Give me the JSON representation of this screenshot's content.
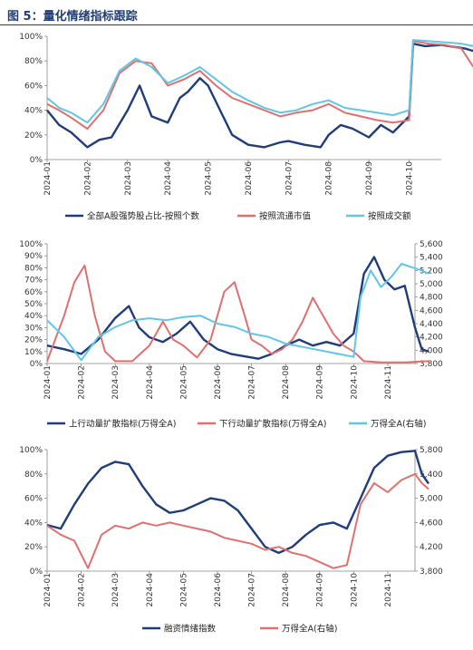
{
  "figure": {
    "title": "图 5：量化情绪指标跟踪"
  },
  "chart_data": [
    {
      "type": "line",
      "ylim": [
        0,
        100
      ],
      "y_ticks": [
        "0%",
        "20%",
        "40%",
        "60%",
        "80%",
        "100%"
      ],
      "x_ticks": [
        "2024-01",
        "2024-02",
        "2024-03",
        "2024-04",
        "2024-05",
        "2024-06",
        "2024-07",
        "2024-08",
        "2024-09",
        "2024-10"
      ],
      "legend_position": "bottom",
      "grid": false,
      "series": [
        {
          "name": "全部A股强势股占比-按照个数",
          "color": "#1f3d7a",
          "points": [
            [
              0,
              40
            ],
            [
              0.3,
              28
            ],
            [
              0.6,
              22
            ],
            [
              1,
              10
            ],
            [
              1.3,
              16
            ],
            [
              1.6,
              18
            ],
            [
              2,
              40
            ],
            [
              2.3,
              60
            ],
            [
              2.6,
              35
            ],
            [
              3,
              30
            ],
            [
              3.3,
              50
            ],
            [
              3.5,
              55
            ],
            [
              3.8,
              66
            ],
            [
              4,
              60
            ],
            [
              4.3,
              40
            ],
            [
              4.6,
              20
            ],
            [
              5,
              12
            ],
            [
              5.4,
              10
            ],
            [
              5.8,
              14
            ],
            [
              6,
              15
            ],
            [
              6.4,
              12
            ],
            [
              6.8,
              10
            ],
            [
              7,
              20
            ],
            [
              7.3,
              28
            ],
            [
              7.6,
              25
            ],
            [
              8,
              18
            ],
            [
              8.3,
              28
            ],
            [
              8.6,
              22
            ],
            [
              9,
              35
            ],
            [
              9.1,
              94
            ],
            [
              9.4,
              92
            ],
            [
              9.8,
              93
            ],
            [
              10,
              92
            ],
            [
              10.4,
              90
            ],
            [
              10.6,
              88
            ]
          ]
        },
        {
          "name": "按照流通市值",
          "color": "#e07070",
          "points": [
            [
              0,
              45
            ],
            [
              0.3,
              40
            ],
            [
              0.6,
              34
            ],
            [
              1,
              25
            ],
            [
              1.4,
              40
            ],
            [
              1.8,
              70
            ],
            [
              2.2,
              80
            ],
            [
              2.6,
              78
            ],
            [
              3,
              60
            ],
            [
              3.4,
              65
            ],
            [
              3.8,
              72
            ],
            [
              4.2,
              60
            ],
            [
              4.6,
              50
            ],
            [
              5,
              45
            ],
            [
              5.4,
              40
            ],
            [
              5.8,
              35
            ],
            [
              6.2,
              38
            ],
            [
              6.6,
              40
            ],
            [
              7,
              45
            ],
            [
              7.4,
              38
            ],
            [
              7.8,
              35
            ],
            [
              8.2,
              32
            ],
            [
              8.6,
              30
            ],
            [
              9,
              32
            ],
            [
              9.1,
              96
            ],
            [
              9.5,
              94
            ],
            [
              9.9,
              93
            ],
            [
              10.3,
              90
            ],
            [
              10.6,
              75
            ]
          ]
        },
        {
          "name": "按照成交额",
          "color": "#5fc6e8",
          "points": [
            [
              0,
              50
            ],
            [
              0.3,
              42
            ],
            [
              0.6,
              38
            ],
            [
              1,
              30
            ],
            [
              1.4,
              45
            ],
            [
              1.8,
              72
            ],
            [
              2.2,
              82
            ],
            [
              2.6,
              75
            ],
            [
              3,
              62
            ],
            [
              3.4,
              68
            ],
            [
              3.8,
              75
            ],
            [
              4.2,
              65
            ],
            [
              4.6,
              55
            ],
            [
              5,
              48
            ],
            [
              5.4,
              42
            ],
            [
              5.8,
              38
            ],
            [
              6.2,
              40
            ],
            [
              6.6,
              45
            ],
            [
              7,
              48
            ],
            [
              7.4,
              42
            ],
            [
              7.8,
              40
            ],
            [
              8.2,
              38
            ],
            [
              8.6,
              36
            ],
            [
              9,
              40
            ],
            [
              9.1,
              97
            ],
            [
              9.5,
              96
            ],
            [
              9.9,
              95
            ],
            [
              10.3,
              94
            ],
            [
              10.6,
              92
            ]
          ]
        }
      ]
    },
    {
      "type": "line",
      "ylim": [
        0,
        100
      ],
      "y_ticks": [
        "0%",
        "10%",
        "20%",
        "30%",
        "40%",
        "50%",
        "60%",
        "70%",
        "80%",
        "90%",
        "100%"
      ],
      "y2lim": [
        3800,
        5600
      ],
      "y2_ticks": [
        "3,800",
        "4,000",
        "4,200",
        "4,400",
        "4,600",
        "4,800",
        "5,000",
        "5,200",
        "5,400",
        "5,600"
      ],
      "x_ticks": [
        "2024-01",
        "2024-02",
        "2024-03",
        "2024-04",
        "2024-05",
        "2024-06",
        "2024-07",
        "2024-08",
        "2024-09",
        "2024-10",
        "2024-11"
      ],
      "legend_position": "bottom",
      "grid": false,
      "series": [
        {
          "name": "上行动量扩散指标(万得全A)",
          "color": "#1f3d7a",
          "axis": "left",
          "points": [
            [
              0,
              15
            ],
            [
              0.5,
              12
            ],
            [
              1,
              8
            ],
            [
              1.5,
              20
            ],
            [
              2,
              38
            ],
            [
              2.4,
              48
            ],
            [
              2.7,
              30
            ],
            [
              3,
              22
            ],
            [
              3.4,
              18
            ],
            [
              3.8,
              25
            ],
            [
              4.2,
              35
            ],
            [
              4.6,
              20
            ],
            [
              5,
              12
            ],
            [
              5.4,
              8
            ],
            [
              5.8,
              6
            ],
            [
              6.2,
              4
            ],
            [
              6.6,
              8
            ],
            [
              7,
              15
            ],
            [
              7.4,
              20
            ],
            [
              7.8,
              15
            ],
            [
              8.2,
              18
            ],
            [
              8.6,
              15
            ],
            [
              9,
              25
            ],
            [
              9.3,
              75
            ],
            [
              9.6,
              89
            ],
            [
              9.9,
              70
            ],
            [
              10.2,
              62
            ],
            [
              10.5,
              65
            ],
            [
              10.8,
              30
            ],
            [
              11,
              12
            ],
            [
              11.2,
              10
            ]
          ]
        },
        {
          "name": "下行动量扩散指标(万得全A)",
          "color": "#e07070",
          "axis": "left",
          "points": [
            [
              0,
              2
            ],
            [
              0.5,
              40
            ],
            [
              0.8,
              68
            ],
            [
              1.1,
              82
            ],
            [
              1.4,
              40
            ],
            [
              1.7,
              10
            ],
            [
              2,
              2
            ],
            [
              2.5,
              2
            ],
            [
              3,
              15
            ],
            [
              3.4,
              35
            ],
            [
              3.7,
              20
            ],
            [
              4,
              15
            ],
            [
              4.4,
              5
            ],
            [
              4.8,
              20
            ],
            [
              5.2,
              60
            ],
            [
              5.5,
              68
            ],
            [
              5.8,
              40
            ],
            [
              6,
              20
            ],
            [
              6.3,
              15
            ],
            [
              6.6,
              8
            ],
            [
              6.9,
              12
            ],
            [
              7.2,
              20
            ],
            [
              7.5,
              35
            ],
            [
              7.8,
              55
            ],
            [
              8.1,
              40
            ],
            [
              8.4,
              25
            ],
            [
              8.7,
              15
            ],
            [
              9,
              10
            ],
            [
              9.3,
              2
            ],
            [
              9.8,
              1
            ],
            [
              10.5,
              1
            ],
            [
              11.2,
              2
            ]
          ]
        },
        {
          "name": "万得全A(右轴)",
          "color": "#5fc6e8",
          "axis": "right",
          "points": [
            [
              0,
              4450
            ],
            [
              0.5,
              4200
            ],
            [
              1,
              3850
            ],
            [
              1.5,
              4200
            ],
            [
              2,
              4350
            ],
            [
              2.5,
              4450
            ],
            [
              3,
              4480
            ],
            [
              3.5,
              4450
            ],
            [
              4,
              4500
            ],
            [
              4.5,
              4520
            ],
            [
              5,
              4400
            ],
            [
              5.5,
              4350
            ],
            [
              6,
              4250
            ],
            [
              6.5,
              4200
            ],
            [
              7,
              4100
            ],
            [
              7.5,
              4050
            ],
            [
              8,
              4000
            ],
            [
              8.5,
              3950
            ],
            [
              9,
              3900
            ],
            [
              9.2,
              4800
            ],
            [
              9.5,
              5200
            ],
            [
              9.8,
              4950
            ],
            [
              10.1,
              5100
            ],
            [
              10.4,
              5300
            ],
            [
              10.7,
              5250
            ],
            [
              11,
              5200
            ],
            [
              11.2,
              5150
            ]
          ]
        }
      ]
    },
    {
      "type": "line",
      "ylim": [
        0,
        100
      ],
      "y_ticks": [
        "0%",
        "20%",
        "40%",
        "60%",
        "80%",
        "100%"
      ],
      "y2lim": [
        3800,
        5800
      ],
      "y2_ticks": [
        "3,800",
        "4,200",
        "4,600",
        "5,000",
        "5,400",
        "5,800"
      ],
      "x_ticks": [
        "2024-01",
        "2024-02",
        "2024-03",
        "2024-04",
        "2024-05",
        "2024-06",
        "2024-07",
        "2024-08",
        "2024-09",
        "2024-10",
        "2024-11"
      ],
      "legend_position": "bottom",
      "grid": false,
      "series": [
        {
          "name": "融资情绪指数",
          "color": "#1f3d7a",
          "axis": "left",
          "points": [
            [
              0,
              38
            ],
            [
              0.4,
              35
            ],
            [
              0.8,
              55
            ],
            [
              1.2,
              72
            ],
            [
              1.6,
              85
            ],
            [
              2,
              90
            ],
            [
              2.4,
              88
            ],
            [
              2.8,
              70
            ],
            [
              3.2,
              55
            ],
            [
              3.6,
              48
            ],
            [
              4,
              50
            ],
            [
              4.4,
              55
            ],
            [
              4.8,
              60
            ],
            [
              5.2,
              58
            ],
            [
              5.6,
              50
            ],
            [
              6,
              35
            ],
            [
              6.4,
              20
            ],
            [
              6.8,
              15
            ],
            [
              7.2,
              20
            ],
            [
              7.6,
              30
            ],
            [
              8,
              38
            ],
            [
              8.4,
              40
            ],
            [
              8.8,
              35
            ],
            [
              9.2,
              60
            ],
            [
              9.6,
              85
            ],
            [
              10,
              95
            ],
            [
              10.4,
              98
            ],
            [
              10.8,
              99
            ],
            [
              11,
              80
            ],
            [
              11.2,
              72
            ]
          ]
        },
        {
          "name": "万得全A(右轴)",
          "color": "#e07070",
          "axis": "right",
          "points": [
            [
              0,
              4550
            ],
            [
              0.4,
              4400
            ],
            [
              0.8,
              4300
            ],
            [
              1.2,
              3850
            ],
            [
              1.6,
              4400
            ],
            [
              2,
              4550
            ],
            [
              2.4,
              4500
            ],
            [
              2.8,
              4600
            ],
            [
              3.2,
              4550
            ],
            [
              3.6,
              4600
            ],
            [
              4,
              4550
            ],
            [
              4.4,
              4500
            ],
            [
              4.8,
              4450
            ],
            [
              5.2,
              4350
            ],
            [
              5.6,
              4300
            ],
            [
              6,
              4250
            ],
            [
              6.4,
              4150
            ],
            [
              6.8,
              4200
            ],
            [
              7.2,
              4100
            ],
            [
              7.6,
              4050
            ],
            [
              8,
              3950
            ],
            [
              8.4,
              3850
            ],
            [
              8.8,
              3900
            ],
            [
              9.2,
              4900
            ],
            [
              9.6,
              5250
            ],
            [
              10,
              5100
            ],
            [
              10.4,
              5300
            ],
            [
              10.8,
              5400
            ],
            [
              11,
              5250
            ],
            [
              11.2,
              5150
            ]
          ]
        }
      ]
    }
  ]
}
